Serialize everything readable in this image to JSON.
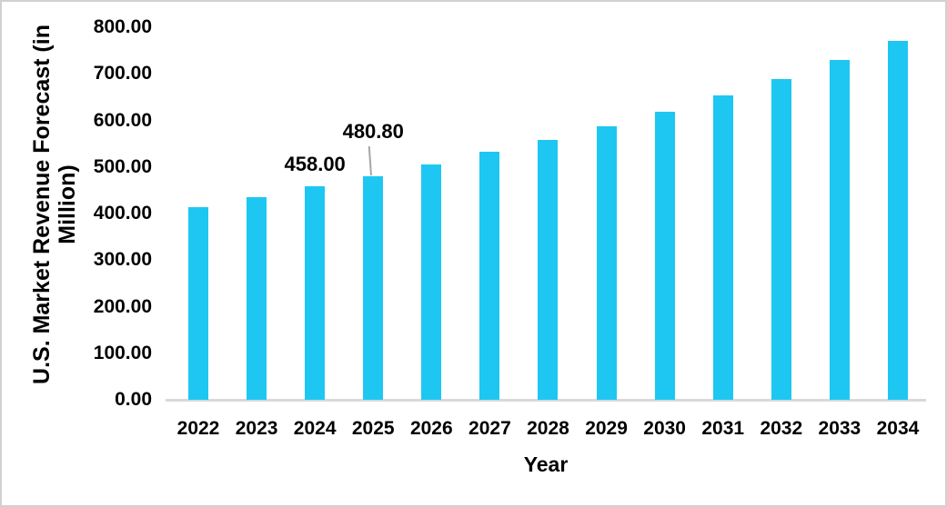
{
  "chart_data": {
    "type": "bar",
    "title": "",
    "xlabel": "Year",
    "ylabel": "U.S. Market Revenue Forecast (in Million)",
    "ylabel_lines": [
      "U.S. Market Revenue Forecast (in",
      "Million)"
    ],
    "categories": [
      "2022",
      "2023",
      "2024",
      "2025",
      "2026",
      "2027",
      "2028",
      "2029",
      "2030",
      "2031",
      "2032",
      "2033",
      "2034"
    ],
    "values": [
      414,
      436,
      458,
      480.8,
      505,
      532,
      559,
      588,
      618,
      653,
      689,
      730,
      771
    ],
    "point_labels": [
      {
        "category": "2024",
        "text": "458.00",
        "leader_line": false
      },
      {
        "category": "2025",
        "text": "480.80",
        "leader_line": true
      }
    ],
    "ylim": [
      0,
      800
    ],
    "ytick_step": 100,
    "ytick_labels": [
      "0.00",
      "100.00",
      "200.00",
      "300.00",
      "400.00",
      "500.00",
      "600.00",
      "700.00",
      "800.00"
    ],
    "grid": false,
    "legend": false,
    "colors": {
      "bar": "#1EC7F2",
      "text": "#000000",
      "axis_line": "#D9D9D9",
      "leader_line": "#A6A6A6",
      "frame_border": "#D1D1D1",
      "background": "#FFFFFF"
    }
  }
}
